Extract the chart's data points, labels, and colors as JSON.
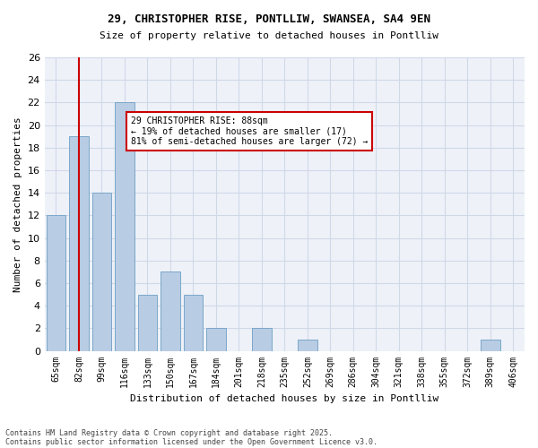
{
  "title1": "29, CHRISTOPHER RISE, PONTLLIW, SWANSEA, SA4 9EN",
  "title2": "Size of property relative to detached houses in Pontlliw",
  "xlabel": "Distribution of detached houses by size in Pontlliw",
  "ylabel": "Number of detached properties",
  "categories": [
    "65sqm",
    "82sqm",
    "99sqm",
    "116sqm",
    "133sqm",
    "150sqm",
    "167sqm",
    "184sqm",
    "201sqm",
    "218sqm",
    "235sqm",
    "252sqm",
    "269sqm",
    "286sqm",
    "304sqm",
    "321sqm",
    "338sqm",
    "355sqm",
    "372sqm",
    "389sqm",
    "406sqm"
  ],
  "values": [
    12,
    19,
    14,
    22,
    5,
    7,
    5,
    2,
    0,
    2,
    0,
    1,
    0,
    0,
    0,
    0,
    0,
    0,
    0,
    1,
    0
  ],
  "bar_color": "#b8cce4",
  "bar_edge_color": "#7ba7c9",
  "vline_x": 1,
  "vline_color": "#cc0000",
  "ylim": [
    0,
    26
  ],
  "yticks": [
    0,
    2,
    4,
    6,
    8,
    10,
    12,
    14,
    16,
    18,
    20,
    22,
    24,
    26
  ],
  "annotation_text": "29 CHRISTOPHER RISE: 88sqm\n← 19% of detached houses are smaller (17)\n81% of semi-detached houses are larger (72) →",
  "annotation_box_color": "#ffffff",
  "annotation_box_edge": "#cc0000",
  "grid_color": "#d0d8e8",
  "background_color": "#eef2f8",
  "footer1": "Contains HM Land Registry data © Crown copyright and database right 2025.",
  "footer2": "Contains public sector information licensed under the Open Government Licence v3.0."
}
